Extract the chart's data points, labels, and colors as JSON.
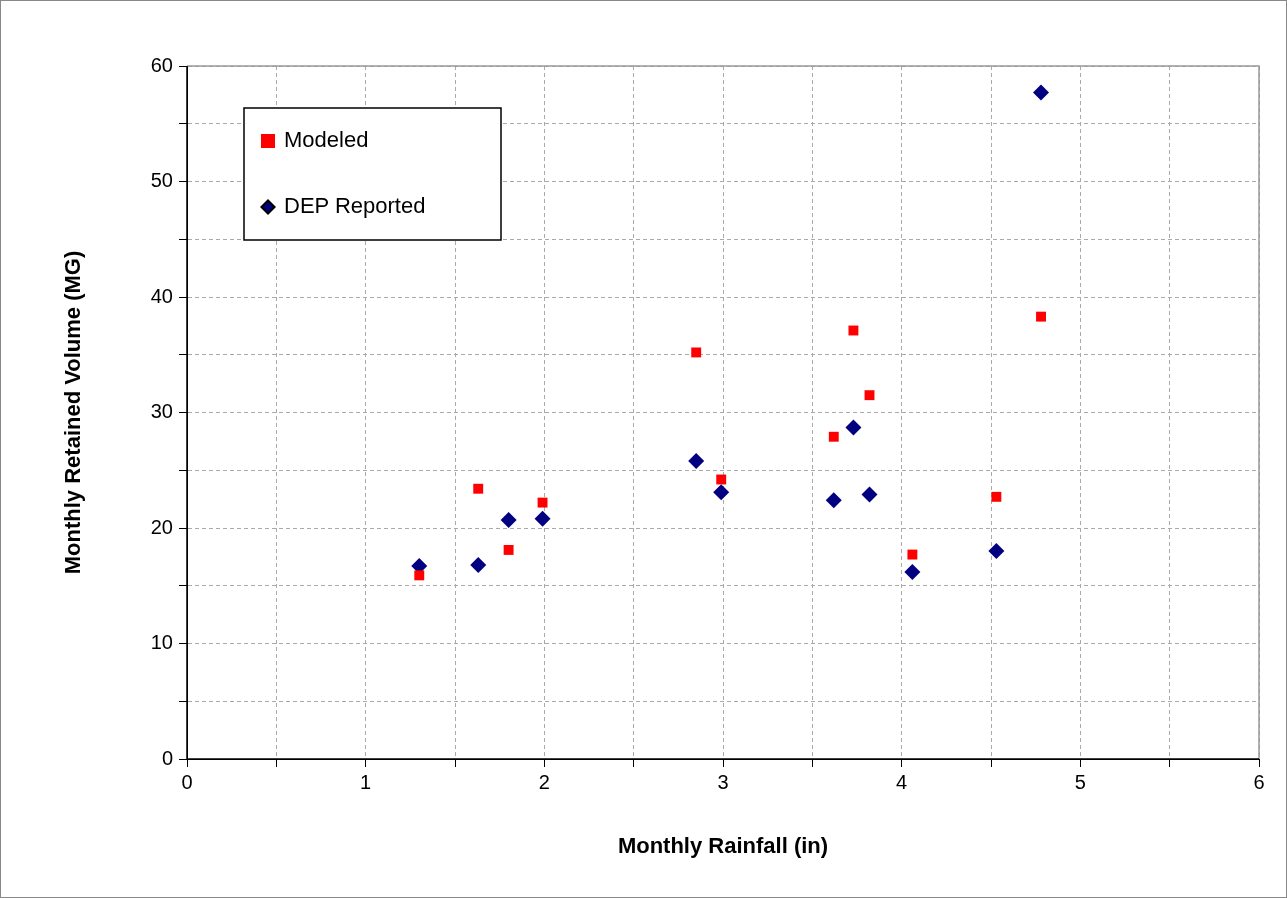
{
  "chart_data": {
    "type": "scatter",
    "xlabel": "Monthly Rainfall (in)",
    "ylabel": "Monthly Retained Volume (MG)",
    "x": [
      1.3,
      1.63,
      1.8,
      1.99,
      2.85,
      2.99,
      3.62,
      3.73,
      3.82,
      4.06,
      4.53,
      4.78
    ],
    "series": [
      {
        "name": "Modeled",
        "color": "#ff0000",
        "marker": "square",
        "values": [
          15.9,
          23.4,
          18.1,
          22.2,
          35.2,
          24.2,
          27.9,
          37.1,
          31.5,
          17.7,
          22.7,
          38.3
        ]
      },
      {
        "name": "DEP Reported",
        "color": "#000080",
        "marker": "diamond",
        "values": [
          16.7,
          16.8,
          20.7,
          20.8,
          25.8,
          23.1,
          22.4,
          28.7,
          22.9,
          16.2,
          18.0,
          57.7
        ]
      }
    ],
    "xlim": [
      0,
      6
    ],
    "xticks": [
      0,
      {
        "value": 0.5,
        "label": null
      },
      1,
      {
        "value": 1.5,
        "label": null
      },
      2,
      {
        "value": 2.5,
        "label": null
      },
      3,
      {
        "value": 3.5,
        "label": null
      },
      4,
      {
        "value": 4.5,
        "label": null
      },
      5,
      {
        "value": 5.5,
        "label": null
      },
      6
    ],
    "ylim": [
      0,
      60
    ],
    "yticks": [
      0,
      {
        "value": 5,
        "label": null
      },
      10,
      {
        "value": 15,
        "label": null
      },
      20,
      {
        "value": 25,
        "label": null
      },
      30,
      {
        "value": 35,
        "label": null
      },
      40,
      {
        "value": 45,
        "label": null
      },
      50,
      {
        "value": 55,
        "label": null
      },
      60
    ],
    "grid": true,
    "legend": "top left"
  }
}
